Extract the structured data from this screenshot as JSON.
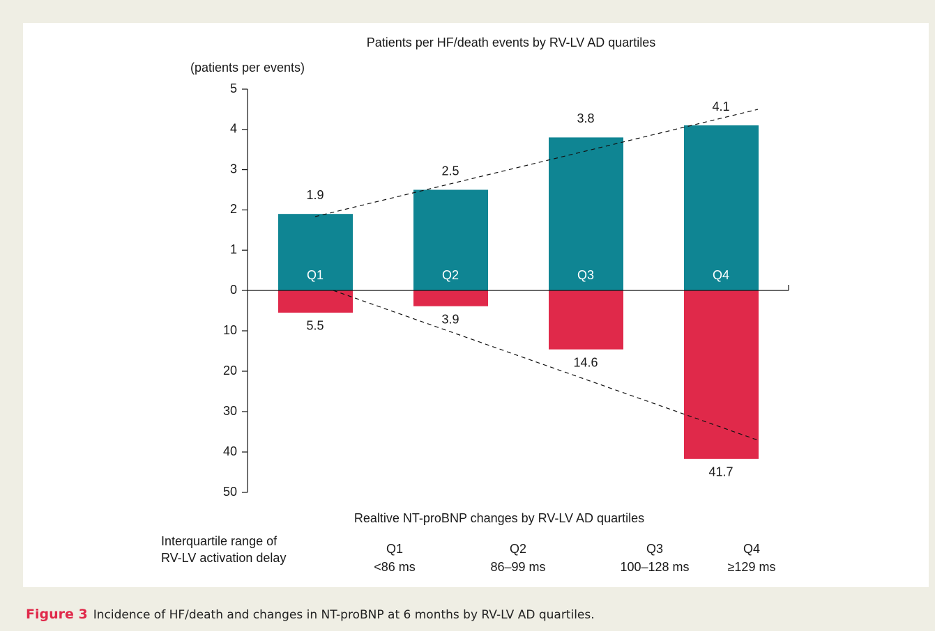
{
  "chart_data": {
    "type": "bar",
    "title": "Patients per HF/death events by RV-LV AD quartiles",
    "y_label": "(patients per events)",
    "x_label": "Realtive NT-proBNP changes by RV-LV AD quartiles",
    "categories": [
      "Q1",
      "Q2",
      "Q3",
      "Q4"
    ],
    "series": [
      {
        "color": "#0f8593",
        "values": [
          1.9,
          2.5,
          3.8,
          4.1
        ]
      },
      {
        "color": "#e0294a",
        "values": [
          5.5,
          3.9,
          14.6,
          41.7
        ],
        "axis": "y2"
      }
    ],
    "ylim": [
      0,
      5
    ],
    "yticks": [
      0,
      1,
      2,
      3,
      4,
      5
    ],
    "y2lim": [
      0,
      50
    ],
    "y2ticks": [
      10,
      20,
      30,
      40,
      50
    ],
    "table": {
      "row_label": [
        "Interquartile range of",
        "RV-LV activation delay"
      ],
      "ranges": [
        "<86 ms",
        "86–99 ms",
        "100–128 ms",
        "≥129 ms"
      ]
    }
  },
  "caption": {
    "label": "Figure 3",
    "text": "Incidence of HF/death and changes in NT-proBNP at 6 months by RV-LV AD quartiles."
  }
}
